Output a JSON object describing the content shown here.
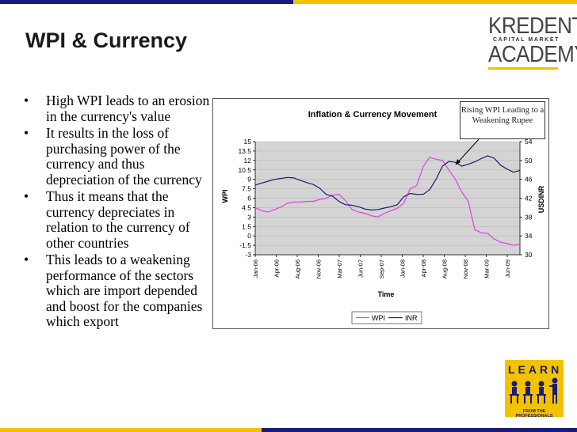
{
  "slide": {
    "title": "WPI & Currency",
    "bullets": [
      "High WPI leads to an erosion in the currency's value",
      "It results in the loss of purchasing power of the currency and thus depreciation of the currency",
      "Thus it means that the currency depreciates in relation to the currency of other countries",
      "This leads to a weakening performance of the sectors which are import depended and boost for the companies which export"
    ],
    "callout": "Rising WPI Leading to a Weakening Rupee"
  },
  "logo": {
    "line1": "KREDENT",
    "line2": "CAPITAL MARKET",
    "line3": "ACADEMY"
  },
  "learn_badge": {
    "word": "LEARN",
    "tagline": "FROM THE PROFESSIONALS"
  },
  "colors": {
    "wpi": "#e040e0",
    "inr": "#1a1a6e",
    "plot_bg": "#d4d4d4",
    "navy": "#1a1a7a",
    "gold": "#f2c200"
  },
  "chart_data": {
    "type": "line",
    "title": "Inflation & Currency Movement",
    "xlabel": "Time",
    "ylabel_left": "WPI",
    "ylabel_right": "USDINR",
    "x_tick_labels": [
      "Jan-06",
      "Apr-06",
      "Aug-06",
      "Nov-06",
      "Mar-07",
      "Jun-07",
      "Sep-07",
      "Jan-08",
      "Apr-08",
      "Aug-08",
      "Nov-08",
      "Mar-09",
      "Jun-09"
    ],
    "x_range": [
      0,
      42
    ],
    "y_left_ticks": [
      "15",
      "13.5",
      "12",
      "10.5",
      "9",
      "7.5",
      "6",
      "4.5",
      "3",
      "1.5",
      "0",
      "-1.5",
      "-3"
    ],
    "y_left_range": [
      -3,
      15
    ],
    "y_right_ticks": [
      "54",
      "50",
      "46",
      "42",
      "38",
      "34",
      "30"
    ],
    "y_right_range": [
      30,
      54
    ],
    "legend": [
      "WPI",
      "INR"
    ],
    "legend_position": "bottom",
    "series": [
      {
        "name": "WPI",
        "axis": "left",
        "values": [
          4.5,
          4.0,
          3.8,
          4.2,
          4.6,
          5.2,
          5.4,
          5.4,
          5.5,
          5.5,
          5.8,
          6.0,
          6.5,
          6.6,
          5.6,
          4.2,
          3.8,
          3.6,
          3.2,
          3.0,
          3.6,
          4.0,
          4.4,
          5.2,
          7.5,
          8.0,
          11.0,
          12.5,
          12.2,
          12.0,
          10.5,
          9.0,
          7.0,
          5.5,
          1.0,
          0.5,
          0.4,
          -0.5,
          -1.0,
          -1.2,
          -1.5,
          -1.3
        ]
      },
      {
        "name": "INR",
        "axis": "right",
        "values": [
          44.8,
          45.2,
          45.6,
          46.0,
          46.2,
          46.4,
          46.3,
          45.8,
          45.3,
          44.9,
          44.1,
          42.8,
          42.4,
          41.3,
          40.6,
          40.5,
          40.2,
          39.7,
          39.5,
          39.6,
          39.9,
          40.2,
          40.6,
          42.3,
          43.0,
          42.8,
          42.8,
          43.8,
          46.0,
          48.8,
          49.8,
          49.6,
          48.8,
          49.2,
          49.7,
          50.4,
          51.0,
          50.5,
          49.0,
          48.2,
          47.5,
          47.9
        ]
      }
    ]
  }
}
